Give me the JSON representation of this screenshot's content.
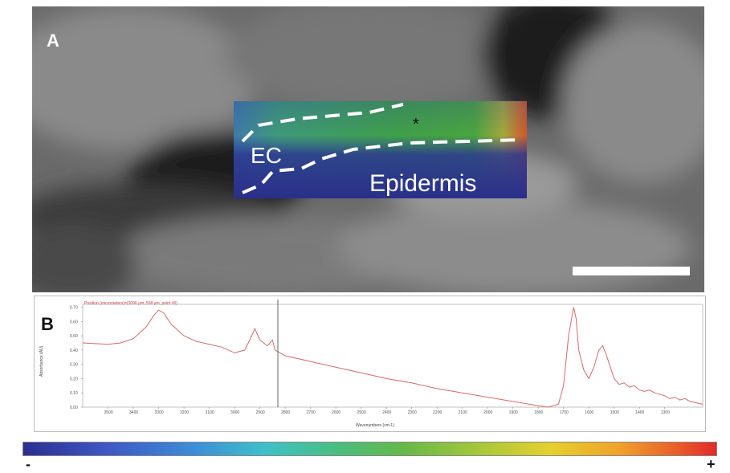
{
  "panel_a": {
    "letter": "A",
    "region_label": "EC",
    "tissue_label": "Epidermis",
    "marker": "*"
  },
  "panel_b": {
    "letter": "B",
    "spectrum_title": "Position (micrometers)=(3096 µm, 558 µm, point #0)",
    "ylabel": "Absorbance (AU)",
    "xlabel": "Wavenumbers (cm-1)",
    "line_color": "#d46a6a"
  },
  "chart_data": {
    "type": "line",
    "title": "Position (micrometers)=(3096 µm, 558 µm, point #0)",
    "xlabel": "Wavenumbers (cm-1)",
    "ylabel": "Absorbance (AU)",
    "xlim": [
      3600,
      1150
    ],
    "ylim": [
      0.0,
      0.72
    ],
    "x_ticks": [
      "3500",
      "3400",
      "3300",
      "3200",
      "3100",
      "3000",
      "2900",
      "2800",
      "2700",
      "2600",
      "2500",
      "2400",
      "2300",
      "2200",
      "2100",
      "2000",
      "1900",
      "1800",
      "1700",
      "1600",
      "1500",
      "1400",
      "1300"
    ],
    "y_ticks": [
      "0.00",
      "0.10",
      "0.20",
      "0.30",
      "0.40",
      "0.50",
      "0.60",
      "0.70"
    ],
    "series": [
      {
        "color": "#d46a6a",
        "x": [
          3600,
          3500,
          3450,
          3400,
          3350,
          3320,
          3300,
          3280,
          3250,
          3200,
          3150,
          3100,
          3050,
          3000,
          2960,
          2940,
          2920,
          2900,
          2870,
          2850,
          2840,
          2800,
          2700,
          2600,
          2500,
          2400,
          2300,
          2200,
          2100,
          2000,
          1900,
          1800,
          1760,
          1720,
          1700,
          1680,
          1660,
          1650,
          1640,
          1620,
          1600,
          1580,
          1560,
          1545,
          1530,
          1500,
          1480,
          1460,
          1440,
          1420,
          1400,
          1380,
          1360,
          1340,
          1300,
          1280,
          1260,
          1240,
          1220,
          1200,
          1150
        ],
        "y": [
          0.45,
          0.44,
          0.45,
          0.48,
          0.56,
          0.64,
          0.68,
          0.66,
          0.58,
          0.5,
          0.46,
          0.44,
          0.42,
          0.38,
          0.4,
          0.47,
          0.55,
          0.47,
          0.43,
          0.47,
          0.4,
          0.36,
          0.32,
          0.28,
          0.24,
          0.2,
          0.17,
          0.13,
          0.1,
          0.07,
          0.04,
          0.01,
          0.0,
          0.02,
          0.15,
          0.5,
          0.7,
          0.62,
          0.4,
          0.26,
          0.2,
          0.28,
          0.4,
          0.43,
          0.36,
          0.2,
          0.16,
          0.17,
          0.14,
          0.15,
          0.12,
          0.11,
          0.12,
          0.1,
          0.08,
          0.06,
          0.07,
          0.05,
          0.06,
          0.04,
          0.02
        ]
      }
    ],
    "grid": false
  },
  "colorbar": {
    "min_label": "-",
    "max_label": "+"
  }
}
